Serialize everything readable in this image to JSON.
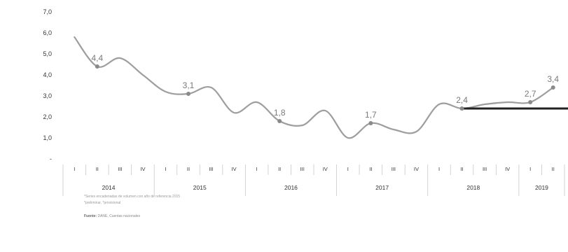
{
  "chart_data": {
    "type": "line",
    "title": "",
    "xlabel": "",
    "ylabel": "",
    "ylim": [
      0,
      7
    ],
    "yticks": [
      "-",
      "1,0",
      "2,0",
      "3,0",
      "4,0",
      "5,0",
      "6,0",
      "7,0"
    ],
    "grid": false,
    "legend": "none",
    "years": [
      {
        "label": "2014",
        "quarters": [
          "I",
          "II",
          "III",
          "IV"
        ]
      },
      {
        "label": "2015",
        "quarters": [
          "I",
          "II",
          "III",
          "IV"
        ]
      },
      {
        "label": "2016",
        "quarters": [
          "I",
          "II",
          "III",
          "IV"
        ]
      },
      {
        "label": "2017",
        "quarters": [
          "I",
          "II",
          "III",
          "IV"
        ]
      },
      {
        "label": "2018",
        "quarters": [
          "I",
          "II",
          "III",
          "IV"
        ]
      },
      {
        "label": "2019",
        "quarters": [
          "I",
          "II"
        ]
      }
    ],
    "series": [
      {
        "values": [
          5.8,
          4.4,
          4.8,
          4.0,
          3.2,
          3.1,
          3.4,
          2.2,
          2.7,
          1.8,
          1.6,
          2.3,
          1.0,
          1.7,
          1.4,
          1.3,
          2.6,
          2.4,
          2.6,
          2.7,
          2.7,
          3.4
        ],
        "color": "#9e9e9e"
      }
    ],
    "data_labels": [
      {
        "index": 1,
        "text": "4,4"
      },
      {
        "index": 5,
        "text": "3,1"
      },
      {
        "index": 9,
        "text": "1,8"
      },
      {
        "index": 13,
        "text": "1,7"
      },
      {
        "index": 17,
        "text": "2,4"
      },
      {
        "index": 20,
        "text": "2,7"
      },
      {
        "index": 21,
        "text": "3,4"
      }
    ],
    "reference_line": {
      "value": 2.4,
      "from_index": 17,
      "color": "#222222"
    }
  },
  "notes": {
    "note1": "*Series encadenadas de volumen con año de referencia 2015",
    "note2": "*preliminar, *provisional",
    "source_label": "Fuente:",
    "source_text": " DANE, Cuentas nacionales"
  }
}
